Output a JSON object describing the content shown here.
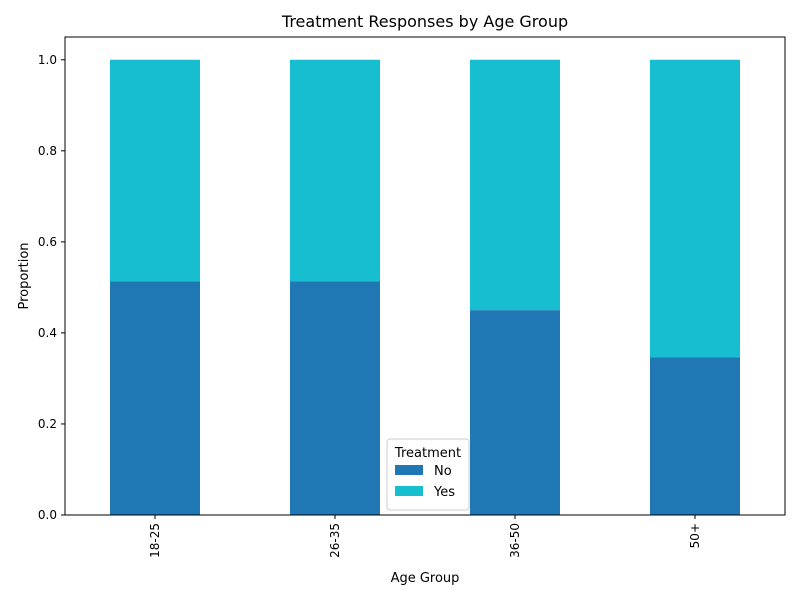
{
  "chart_data": {
    "type": "bar",
    "stacked": true,
    "title": "Treatment Responses by Age Group",
    "xlabel": "Age Group",
    "ylabel": "Proportion",
    "categories": [
      "18-25",
      "26-35",
      "36-50",
      "50+"
    ],
    "series": [
      {
        "name": "No",
        "color": "#1f77b4",
        "values": [
          0.513,
          0.513,
          0.45,
          0.346
        ]
      },
      {
        "name": "Yes",
        "color": "#17becf",
        "values": [
          0.487,
          0.487,
          0.55,
          0.654
        ]
      }
    ],
    "ylim": [
      0,
      1.05
    ],
    "yticks": [
      "0.0",
      "0.2",
      "0.4",
      "0.6",
      "0.8",
      "1.0"
    ],
    "grid": false,
    "legend": {
      "title": "Treatment",
      "placement": "bottom-center"
    }
  }
}
